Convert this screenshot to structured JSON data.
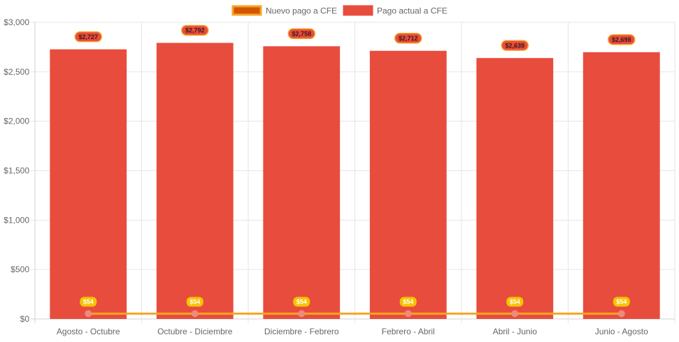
{
  "chart_data": {
    "type": "bar",
    "categories": [
      "Agosto - Octubre",
      "Octubre - Diciembre",
      "Diciembre - Febrero",
      "Febrero - Abril",
      "Abril - Junio",
      "Junio - Agosto"
    ],
    "series": [
      {
        "name": "Pago actual a CFE",
        "type": "bar",
        "values": [
          2727,
          2792,
          2758,
          2712,
          2639,
          2698
        ],
        "labels": [
          "$2,727",
          "$2,792",
          "$2,758",
          "$2,712",
          "$2,639",
          "$2,698"
        ],
        "color": "#e84c3d",
        "label_bg": "#e84c3d",
        "label_border": "#f5a623",
        "label_color": "#3a1a1a"
      },
      {
        "name": "Nuevo pago a CFE",
        "type": "line",
        "values": [
          54,
          54,
          54,
          54,
          54,
          54
        ],
        "labels": [
          "$54",
          "$54",
          "$54",
          "$54",
          "$54",
          "$54"
        ],
        "color": "#f5a623",
        "point_color": "#f08a7a",
        "label_bg": "#f5c400",
        "label_color": "#ffffff"
      }
    ],
    "legend": [
      {
        "name": "Nuevo pago a CFE",
        "fill": "#d35400",
        "border": "#f5a623"
      },
      {
        "name": "Pago actual a CFE",
        "fill": "#e84c3d",
        "border": "#e84c3d"
      }
    ],
    "ylim": [
      0,
      3000
    ],
    "yticks": [
      0,
      500,
      1000,
      1500,
      2000,
      2500,
      3000
    ],
    "ytick_labels": [
      "$0",
      "$500",
      "$1,000",
      "$1,500",
      "$2,000",
      "$2,500",
      "$3,000"
    ],
    "legend_position": "top-center",
    "grid": true,
    "title": "",
    "xlabel": "",
    "ylabel": ""
  }
}
